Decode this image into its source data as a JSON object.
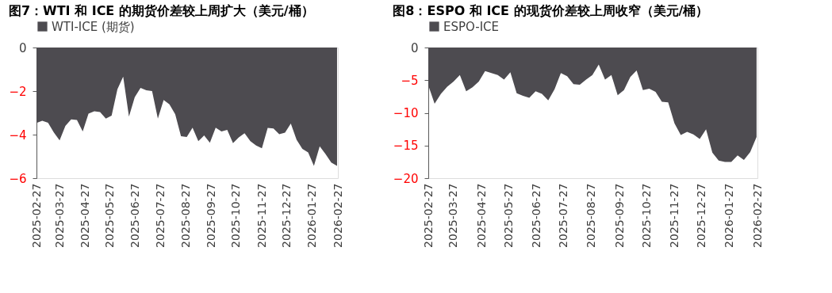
{
  "chart_data": [
    {
      "type": "area",
      "title": "图7：WTI 和 ICE 的期货价差较上周扩大（美元/桶）",
      "legend": "top",
      "grid": false,
      "x": [
        "2025-02-27",
        "2025-03-06",
        "2025-03-13",
        "2025-03-20",
        "2025-03-27",
        "2025-04-03",
        "2025-04-10",
        "2025-04-17",
        "2025-04-24",
        "2025-05-01",
        "2025-05-08",
        "2025-05-15",
        "2025-05-22",
        "2025-05-29",
        "2025-06-05",
        "2025-06-12",
        "2025-06-19",
        "2025-06-26",
        "2025-07-03",
        "2025-07-10",
        "2025-07-17",
        "2025-07-24",
        "2025-07-31",
        "2025-08-07",
        "2025-08-14",
        "2025-08-21",
        "2025-08-28",
        "2025-09-04",
        "2025-09-11",
        "2025-09-18",
        "2025-09-25",
        "2025-10-02",
        "2025-10-09",
        "2025-10-16",
        "2025-10-23",
        "2025-10-30",
        "2025-11-06",
        "2025-11-13",
        "2025-11-20",
        "2025-11-27",
        "2025-12-04",
        "2025-12-11",
        "2025-12-18",
        "2025-12-25",
        "2026-01-01",
        "2026-01-08",
        "2026-01-15",
        "2026-01-22",
        "2026-01-29",
        "2026-02-05",
        "2026-02-12",
        "2026-02-19",
        "2026-02-26"
      ],
      "xlim": [
        "2025-02-27",
        "2026-02-27"
      ],
      "xticks": [
        "2025-02-27",
        "2025-03-27",
        "2025-04-27",
        "2025-05-27",
        "2025-06-27",
        "2025-07-27",
        "2025-08-27",
        "2025-09-27",
        "2025-10-27",
        "2025-11-27",
        "2025-12-27",
        "2026-01-27",
        "2026-02-27"
      ],
      "ylim": [
        -6,
        0
      ],
      "yticks": [
        0,
        -2,
        -4,
        -6
      ],
      "series": [
        {
          "name": "WTI-ICE (期货)",
          "color": "#4d4b50",
          "values": [
            -3.46,
            -3.36,
            -3.45,
            -3.9,
            -4.26,
            -3.6,
            -3.3,
            -3.33,
            -3.85,
            -3.04,
            -2.93,
            -2.96,
            -3.26,
            -3.13,
            -1.92,
            -1.34,
            -3.17,
            -2.28,
            -1.85,
            -1.96,
            -2.0,
            -3.26,
            -2.41,
            -2.61,
            -3.06,
            -4.07,
            -4.11,
            -3.68,
            -4.3,
            -4.04,
            -4.37,
            -3.68,
            -3.85,
            -3.78,
            -4.39,
            -4.13,
            -3.94,
            -4.3,
            -4.5,
            -4.63,
            -3.69,
            -3.72,
            -3.98,
            -3.91,
            -3.49,
            -4.24,
            -4.65,
            -4.82,
            -5.44,
            -4.54,
            -4.89,
            -5.28,
            -5.44
          ]
        }
      ]
    },
    {
      "type": "area",
      "title": "图8：ESPO 和 ICE 的现货价差较上周收窄（美元/桶）",
      "legend": "top",
      "grid": false,
      "x": [
        "2025-02-27",
        "2025-03-06",
        "2025-03-13",
        "2025-03-20",
        "2025-03-27",
        "2025-04-03",
        "2025-04-10",
        "2025-04-17",
        "2025-04-24",
        "2025-05-01",
        "2025-05-08",
        "2025-05-15",
        "2025-05-22",
        "2025-05-29",
        "2025-06-05",
        "2025-06-12",
        "2025-06-19",
        "2025-06-26",
        "2025-07-03",
        "2025-07-10",
        "2025-07-17",
        "2025-07-24",
        "2025-07-31",
        "2025-08-07",
        "2025-08-14",
        "2025-08-21",
        "2025-08-28",
        "2025-09-04",
        "2025-09-11",
        "2025-09-18",
        "2025-09-25",
        "2025-10-02",
        "2025-10-09",
        "2025-10-16",
        "2025-10-23",
        "2025-10-30",
        "2025-11-06",
        "2025-11-13",
        "2025-11-20",
        "2025-11-27",
        "2025-12-04",
        "2025-12-11",
        "2025-12-18",
        "2025-12-25",
        "2026-01-01",
        "2026-01-08",
        "2026-01-15",
        "2026-01-22",
        "2026-01-29",
        "2026-02-05",
        "2026-02-12",
        "2026-02-19",
        "2026-02-26"
      ],
      "xlim": [
        "2025-02-27",
        "2026-02-27"
      ],
      "xticks": [
        "2025-02-27",
        "2025-03-27",
        "2025-04-27",
        "2025-05-27",
        "2025-06-27",
        "2025-07-27",
        "2025-08-27",
        "2025-09-27",
        "2025-10-27",
        "2025-11-27",
        "2025-12-27",
        "2026-01-27",
        "2026-02-27"
      ],
      "ylim": [
        -20,
        0
      ],
      "yticks": [
        0,
        -5,
        -10,
        -15,
        -20
      ],
      "series": [
        {
          "name": "ESPO-ICE",
          "color": "#4d4b50",
          "values": [
            -5.8,
            -8.6,
            -7.1,
            -6.0,
            -5.2,
            -4.2,
            -6.7,
            -6.1,
            -5.2,
            -3.6,
            -3.9,
            -4.2,
            -4.9,
            -3.8,
            -7.0,
            -7.4,
            -7.7,
            -6.7,
            -7.1,
            -8.1,
            -6.4,
            -3.9,
            -4.4,
            -5.6,
            -5.7,
            -4.9,
            -4.2,
            -2.6,
            -4.9,
            -4.2,
            -7.3,
            -6.5,
            -4.5,
            -3.5,
            -6.5,
            -6.3,
            -6.8,
            -8.3,
            -8.4,
            -11.6,
            -13.4,
            -12.9,
            -13.3,
            -14.0,
            -12.5,
            -16.1,
            -17.3,
            -17.5,
            -17.5,
            -16.5,
            -17.2,
            -16.0,
            -13.7
          ]
        }
      ]
    }
  ]
}
